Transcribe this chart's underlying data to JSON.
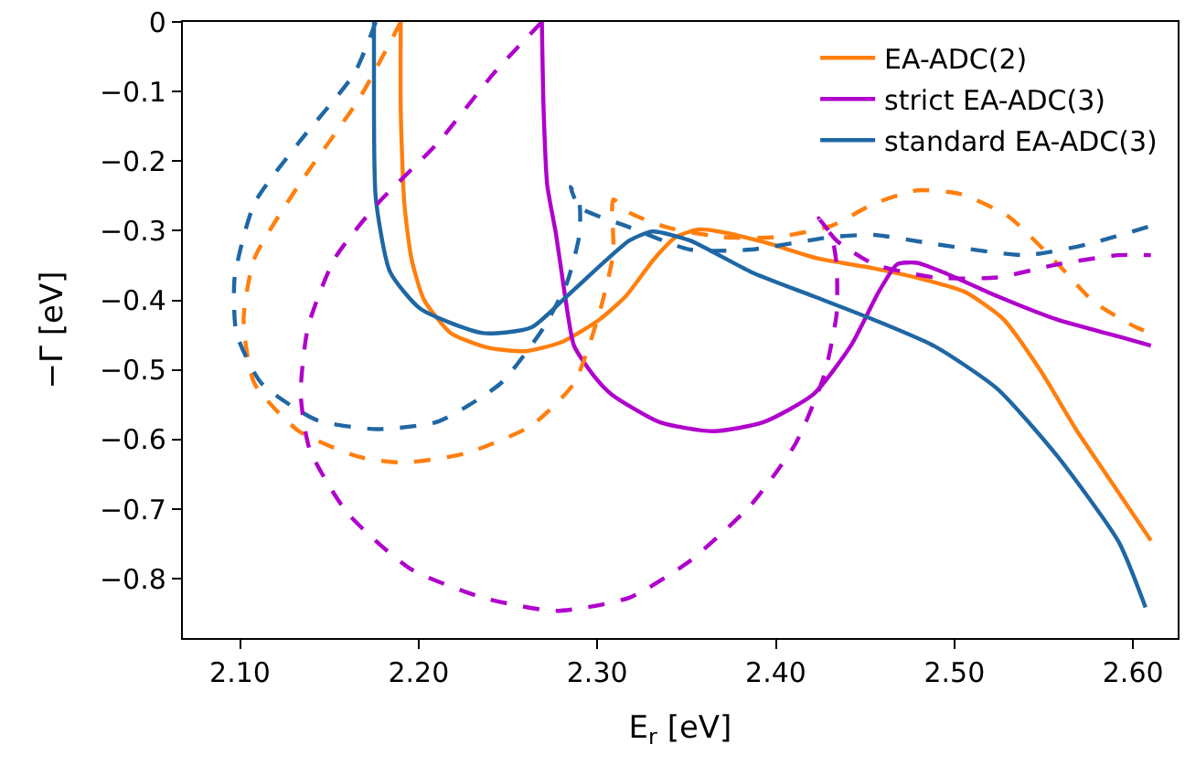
{
  "chart_data": {
    "type": "line",
    "xlabel": "E$_{r}$ [eV]",
    "ylabel": "−Γ [eV]",
    "xlim": [
      2.068,
      2.625
    ],
    "ylim": [
      -0.885,
      0
    ],
    "xticks": [
      {
        "value": 2.1,
        "label": "2.10"
      },
      {
        "value": 2.2,
        "label": "2.20"
      },
      {
        "value": 2.3,
        "label": "2.30"
      },
      {
        "value": 2.4,
        "label": "2.40"
      },
      {
        "value": 2.5,
        "label": "2.50"
      },
      {
        "value": 2.6,
        "label": "2.60"
      }
    ],
    "yticks": [
      {
        "value": 0,
        "label": "0"
      },
      {
        "value": -0.1,
        "label": "−0.1"
      },
      {
        "value": -0.2,
        "label": "−0.2"
      },
      {
        "value": -0.3,
        "label": "−0.3"
      },
      {
        "value": -0.4,
        "label": "−0.4"
      },
      {
        "value": -0.5,
        "label": "−0.5"
      },
      {
        "value": -0.6,
        "label": "−0.6"
      },
      {
        "value": -0.7,
        "label": "−0.7"
      },
      {
        "value": -0.8,
        "label": "−0.8"
      }
    ],
    "grid": false,
    "legend": "top right",
    "marker": "none",
    "series": [
      {
        "name": "EA-ADC(2)",
        "color": "#ff7f0e",
        "line_style": "solid",
        "x": [
          2.19,
          2.19,
          2.192,
          2.196,
          2.203,
          2.218,
          2.239,
          2.26,
          2.28,
          2.301,
          2.316,
          2.332,
          2.344,
          2.357,
          2.368,
          2.393,
          2.424,
          2.455,
          2.486,
          2.506,
          2.527,
          2.548,
          2.568,
          2.589,
          2.61
        ],
        "values": [
          0,
          -0.128,
          -0.261,
          -0.34,
          -0.399,
          -0.447,
          -0.468,
          -0.473,
          -0.46,
          -0.428,
          -0.394,
          -0.34,
          -0.309,
          -0.298,
          -0.301,
          -0.316,
          -0.34,
          -0.354,
          -0.372,
          -0.388,
          -0.426,
          -0.5,
          -0.585,
          -0.665,
          -0.745
        ]
      },
      {
        "name": "strict EA-ADC(3)",
        "color": "#b000cc",
        "line_style": "solid",
        "x": [
          2.269,
          2.27,
          2.272,
          2.277,
          2.282,
          2.287,
          2.298,
          2.308,
          2.335,
          2.365,
          2.393,
          2.421,
          2.442,
          2.458,
          2.468,
          2.479,
          2.496,
          2.524,
          2.558,
          2.592,
          2.61
        ],
        "values": [
          0,
          -0.128,
          -0.234,
          -0.306,
          -0.394,
          -0.465,
          -0.508,
          -0.535,
          -0.575,
          -0.588,
          -0.575,
          -0.535,
          -0.465,
          -0.386,
          -0.348,
          -0.346,
          -0.362,
          -0.394,
          -0.428,
          -0.452,
          -0.465
        ]
      },
      {
        "name": "standard EA-ADC(3)",
        "color": "#1f67a4",
        "line_style": "solid",
        "x": [
          2.175,
          2.175,
          2.176,
          2.184,
          2.201,
          2.236,
          2.263,
          2.283,
          2.306,
          2.318,
          2.331,
          2.352,
          2.386,
          2.421,
          2.455,
          2.489,
          2.524,
          2.558,
          2.592,
          2.607
        ],
        "values": [
          0,
          -0.128,
          -0.253,
          -0.359,
          -0.412,
          -0.447,
          -0.439,
          -0.394,
          -0.34,
          -0.314,
          -0.301,
          -0.314,
          -0.359,
          -0.394,
          -0.428,
          -0.466,
          -0.527,
          -0.625,
          -0.747,
          -0.841
        ]
      },
      {
        "color": "#ff7f0e",
        "line_style": "dashed",
        "x": [
          2.19,
          2.167,
          2.133,
          2.108,
          2.102,
          2.108,
          2.133,
          2.167,
          2.191,
          2.226,
          2.263,
          2.287,
          2.301,
          2.309,
          2.309,
          2.318,
          2.339,
          2.37,
          2.4,
          2.431,
          2.455,
          2.479,
          2.503,
          2.53,
          2.558,
          2.578,
          2.602,
          2.61
        ],
        "values": [
          0,
          -0.109,
          -0.234,
          -0.34,
          -0.428,
          -0.519,
          -0.588,
          -0.625,
          -0.633,
          -0.62,
          -0.58,
          -0.519,
          -0.42,
          -0.332,
          -0.255,
          -0.274,
          -0.295,
          -0.309,
          -0.309,
          -0.293,
          -0.261,
          -0.242,
          -0.247,
          -0.279,
          -0.348,
          -0.402,
          -0.439,
          -0.447
        ]
      },
      {
        "color": "#b000cc",
        "line_style": "dashed",
        "x": [
          2.269,
          2.242,
          2.211,
          2.177,
          2.153,
          2.138,
          2.134,
          2.139,
          2.16,
          2.195,
          2.236,
          2.277,
          2.318,
          2.352,
          2.386,
          2.411,
          2.427,
          2.434,
          2.434,
          2.431,
          2.424,
          2.434,
          2.455,
          2.489,
          2.524,
          2.558,
          2.592,
          2.61
        ],
        "values": [
          0,
          -0.074,
          -0.173,
          -0.261,
          -0.34,
          -0.439,
          -0.535,
          -0.614,
          -0.705,
          -0.785,
          -0.827,
          -0.846,
          -0.827,
          -0.774,
          -0.694,
          -0.606,
          -0.508,
          -0.42,
          -0.348,
          -0.306,
          -0.282,
          -0.314,
          -0.348,
          -0.367,
          -0.367,
          -0.348,
          -0.335,
          -0.335
        ]
      },
      {
        "color": "#1f67a4",
        "line_style": "dashed",
        "x": [
          2.176,
          2.164,
          2.133,
          2.108,
          2.097,
          2.098,
          2.112,
          2.143,
          2.177,
          2.211,
          2.246,
          2.27,
          2.283,
          2.29,
          2.29,
          2.285,
          2.29,
          2.318,
          2.352,
          2.386,
          2.431,
          2.455,
          2.489,
          2.54,
          2.575,
          2.61
        ],
        "values": [
          0,
          -0.074,
          -0.173,
          -0.261,
          -0.367,
          -0.447,
          -0.519,
          -0.572,
          -0.585,
          -0.574,
          -0.519,
          -0.439,
          -0.375,
          -0.306,
          -0.261,
          -0.237,
          -0.266,
          -0.295,
          -0.327,
          -0.327,
          -0.309,
          -0.306,
          -0.319,
          -0.335,
          -0.319,
          -0.293
        ]
      }
    ]
  }
}
